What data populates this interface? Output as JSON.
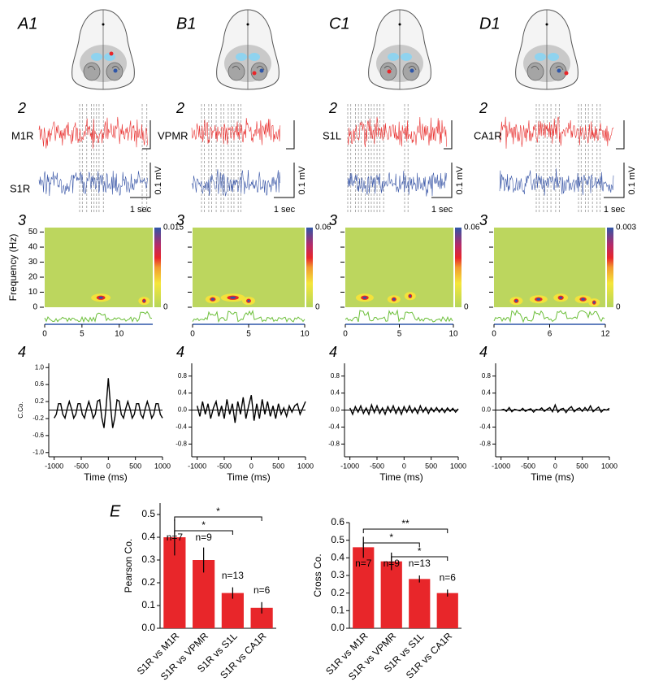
{
  "columns": [
    {
      "label": "A1",
      "trace_row": "2",
      "spectrogram_row": "3",
      "correlogram_row": "4",
      "trace_labels": [
        "M1R",
        "S1R"
      ],
      "scale_voltage": "0.1 mV",
      "scale_time": "1 sec"
    },
    {
      "label": "B1",
      "trace_row": "2",
      "spectrogram_row": "3",
      "correlogram_row": "4",
      "trace_labels": [
        "VPMR"
      ],
      "scale_voltage": "0.1 mV",
      "scale_time": "1 sec"
    },
    {
      "label": "C1",
      "trace_row": "2",
      "spectrogram_row": "3",
      "correlogram_row": "4",
      "trace_labels": [
        "S1L"
      ],
      "scale_voltage": "0.1 mV",
      "scale_time": "1 sec"
    },
    {
      "label": "D1",
      "trace_row": "2",
      "spectrogram_row": "3",
      "correlogram_row": "4",
      "trace_labels": [
        "CA1R"
      ],
      "scale_voltage": "0.1 mV",
      "scale_time": "1 sec"
    }
  ],
  "panel_e_label": "E",
  "chart_data": [
    {
      "type": "spectrogram",
      "ylabel": "Frequency (Hz)",
      "xlim": [
        0,
        14.5
      ],
      "xticks": [
        0,
        5,
        10
      ],
      "ylim": [
        0,
        53
      ],
      "yticks": [
        0,
        10,
        20,
        30,
        40,
        50
      ],
      "ytick_labels": true,
      "colorbar_ticks": [
        0,
        0.015
      ]
    },
    {
      "type": "spectrogram",
      "xlim": [
        0,
        10
      ],
      "xticks": [
        0,
        5,
        10
      ],
      "ylim": [
        0,
        53
      ],
      "yticks": [
        0,
        10,
        20,
        30,
        40,
        50
      ],
      "ytick_labels": false,
      "colorbar_ticks": [
        0,
        0.06
      ]
    },
    {
      "type": "spectrogram",
      "xlim": [
        0,
        10
      ],
      "xticks": [
        0,
        5,
        10
      ],
      "ylim": [
        0,
        53
      ],
      "yticks": [
        0,
        10,
        20,
        30,
        40,
        50
      ],
      "ytick_labels": false,
      "colorbar_ticks": [
        0,
        0.06
      ]
    },
    {
      "type": "spectrogram",
      "xlim": [
        0,
        12
      ],
      "xticks": [
        0,
        6,
        12
      ],
      "ylim": [
        0,
        53
      ],
      "yticks": [
        0,
        10,
        20,
        30,
        40,
        50
      ],
      "ytick_labels": false,
      "colorbar_ticks": [
        0,
        0.003
      ]
    },
    {
      "type": "line",
      "ylabel": "C.Co.",
      "xlabel": "Time (ms)",
      "color": "#000000",
      "x": [
        -1000,
        -960,
        -920,
        -880,
        -840,
        -800,
        -760,
        -720,
        -680,
        -640,
        -600,
        -560,
        -520,
        -480,
        -440,
        -400,
        -360,
        -320,
        -280,
        -240,
        -200,
        -160,
        -120,
        -80,
        -40,
        0,
        40,
        80,
        120,
        160,
        200,
        240,
        280,
        320,
        360,
        400,
        440,
        480,
        520,
        560,
        600,
        640,
        680,
        720,
        760,
        800,
        840,
        880,
        920,
        960,
        1000
      ],
      "values": [
        -0.19,
        -0.1,
        0.15,
        0.15,
        -0.1,
        -0.19,
        0.03,
        0.2,
        0.03,
        -0.19,
        -0.1,
        0.15,
        0.15,
        -0.1,
        -0.19,
        0.03,
        0.2,
        0.03,
        -0.19,
        -0.1,
        0.21,
        0.24,
        -0.18,
        -0.42,
        0.1,
        0.75,
        0.1,
        -0.42,
        -0.18,
        0.24,
        0.21,
        -0.1,
        -0.19,
        0.03,
        0.2,
        0.03,
        -0.19,
        -0.1,
        0.15,
        0.15,
        -0.1,
        -0.19,
        0.03,
        0.2,
        0.03,
        -0.19,
        -0.1,
        0.15,
        0.15,
        -0.1,
        -0.19
      ],
      "xlim": [
        -1100,
        1000
      ],
      "xticks": [
        -1000,
        -500,
        0,
        500,
        1000
      ],
      "ylim": [
        -1.1,
        1.1
      ],
      "yticks": [
        {
          "value": 1,
          "label": "1.0"
        },
        0.6,
        0.2,
        -0.2,
        -0.6,
        {
          "value": -1,
          "label": "-1.0"
        }
      ]
    },
    {
      "type": "line",
      "xlabel": "Time (ms)",
      "color": "#000000",
      "x": [
        -1000,
        -950,
        -900,
        -850,
        -800,
        -750,
        -700,
        -650,
        -600,
        -550,
        -500,
        -450,
        -400,
        -350,
        -300,
        -250,
        -200,
        -150,
        -100,
        -50,
        0,
        50,
        100,
        150,
        200,
        250,
        300,
        350,
        400,
        450,
        500,
        550,
        600,
        650,
        700,
        750,
        800,
        850,
        900,
        950,
        1000
      ],
      "values": [
        0.1,
        -0.15,
        0.2,
        -0.1,
        0.15,
        -0.2,
        0.05,
        0.2,
        -0.15,
        0.1,
        -0.2,
        0.25,
        -0.1,
        0.15,
        -0.3,
        0.2,
        -0.1,
        0.3,
        -0.2,
        0.1,
        0.35,
        -0.25,
        0.15,
        -0.2,
        0.25,
        -0.1,
        0.2,
        -0.15,
        0.1,
        -0.2,
        0.15,
        -0.1,
        0.05,
        -0.15,
        0.1,
        -0.05,
        0.1,
        0.15,
        -0.1,
        0.05,
        0.2
      ],
      "xlim": [
        -1100,
        1000
      ],
      "xticks": [
        -1000,
        -500,
        0,
        500,
        1000
      ],
      "ylim": [
        -1.1,
        1.1
      ],
      "yticks": [
        0.8,
        0.4,
        {
          "value": 0,
          "label": "0.0"
        },
        -0.4,
        -0.8
      ]
    },
    {
      "type": "line",
      "xlabel": "Time (ms)",
      "color": "#000000",
      "x": [
        -1000,
        -950,
        -900,
        -850,
        -800,
        -750,
        -700,
        -650,
        -600,
        -550,
        -500,
        -450,
        -400,
        -350,
        -300,
        -250,
        -200,
        -150,
        -100,
        -50,
        0,
        50,
        100,
        150,
        200,
        250,
        300,
        350,
        400,
        450,
        500,
        550,
        600,
        650,
        700,
        750,
        800,
        850,
        900,
        950,
        1000
      ],
      "values": [
        0.05,
        -0.1,
        0.08,
        -0.05,
        0.1,
        -0.08,
        0.05,
        -0.1,
        0.12,
        -0.06,
        0.1,
        -0.08,
        0.05,
        -0.1,
        0.08,
        -0.05,
        0.1,
        -0.08,
        0.06,
        -0.1,
        0.08,
        -0.05,
        0.1,
        -0.06,
        0.05,
        -0.08,
        0.1,
        -0.05,
        0.06,
        -0.08,
        0.05,
        -0.04,
        0.06,
        -0.05,
        0.04,
        -0.06,
        0.05,
        -0.03,
        0.04,
        -0.05,
        0.03
      ],
      "xlim": [
        -1100,
        1000
      ],
      "xticks": [
        -1000,
        -500,
        0,
        500,
        1000
      ],
      "ylim": [
        -1.1,
        1.1
      ],
      "yticks": [
        0.8,
        0.4,
        {
          "value": 0,
          "label": "0.0"
        },
        -0.4,
        -0.8
      ]
    },
    {
      "type": "line",
      "xlabel": "Time (ms)",
      "color": "#000000",
      "x": [
        -1000,
        -950,
        -900,
        -850,
        -800,
        -750,
        -700,
        -650,
        -600,
        -550,
        -500,
        -450,
        -400,
        -350,
        -300,
        -250,
        -200,
        -150,
        -100,
        -50,
        0,
        50,
        100,
        150,
        200,
        250,
        300,
        350,
        400,
        450,
        500,
        550,
        600,
        650,
        700,
        750,
        800,
        850,
        900,
        950,
        1000
      ],
      "values": [
        0,
        0.02,
        -0.03,
        0.06,
        -0.04,
        0.02,
        0,
        -0.02,
        0.04,
        -0.03,
        0.01,
        0.03,
        -0.05,
        0.02,
        0,
        0.05,
        -0.03,
        0.02,
        0.06,
        -0.04,
        0.12,
        -0.05,
        0.02,
        0.04,
        -0.06,
        0.03,
        0.08,
        -0.04,
        0.02,
        0.05,
        -0.03,
        0.06,
        -0.02,
        0.1,
        -0.04,
        0.02,
        0.07,
        -0.05,
        0.02,
        0,
        0.04
      ],
      "xlim": [
        -1100,
        1000
      ],
      "xticks": [
        -1000,
        -500,
        0,
        500,
        1000
      ],
      "ylim": [
        -1.1,
        1.1
      ],
      "yticks": [
        0.8,
        0.4,
        {
          "value": 0,
          "label": "0.0"
        },
        -0.4,
        -0.8
      ]
    },
    {
      "type": "bar",
      "ylabel": "Pearson Co.",
      "color": "#e8262a",
      "categories": [
        "S1R vs M1R",
        "S1R vs VPMR",
        "S1R vs S1L",
        "S1R vs CA1R"
      ],
      "values": [
        0.4,
        0.3,
        0.155,
        0.09
      ],
      "errors": [
        0.08,
        0.055,
        0.025,
        0.025
      ],
      "annotations": [
        "n=7",
        "n=9",
        "n=13",
        "n=6"
      ],
      "ylim": [
        0,
        0.55
      ],
      "yticks": [
        {
          "value": 0,
          "label": "0.0"
        },
        0.1,
        0.2,
        0.3,
        0.4,
        0.5
      ],
      "significance": [
        {
          "from": 0,
          "to": 3,
          "label": "*"
        },
        {
          "from": 0,
          "to": 2,
          "label": "*"
        }
      ]
    },
    {
      "type": "bar",
      "ylabel": "Cross Co.",
      "color": "#e8262a",
      "categories": [
        "S1R vs M1R",
        "S1R vs VPMR",
        "S1R vs S1L",
        "S1R vs CA1R"
      ],
      "values": [
        0.46,
        0.38,
        0.28,
        0.2
      ],
      "errors": [
        0.06,
        0.05,
        0.02,
        0.02
      ],
      "annotations": [
        "n=7",
        "n=9",
        "n=13",
        "n=6"
      ],
      "ylim": [
        0,
        0.6
      ],
      "yticks": [
        {
          "value": 0,
          "label": "0.0"
        },
        0.1,
        0.2,
        0.3,
        0.4,
        0.5,
        0.6
      ],
      "significance": [
        {
          "from": 0,
          "to": 3,
          "label": "**"
        },
        {
          "from": 0,
          "to": 2,
          "label": "*"
        },
        {
          "from": 1,
          "to": 3,
          "label": "*"
        }
      ]
    }
  ]
}
